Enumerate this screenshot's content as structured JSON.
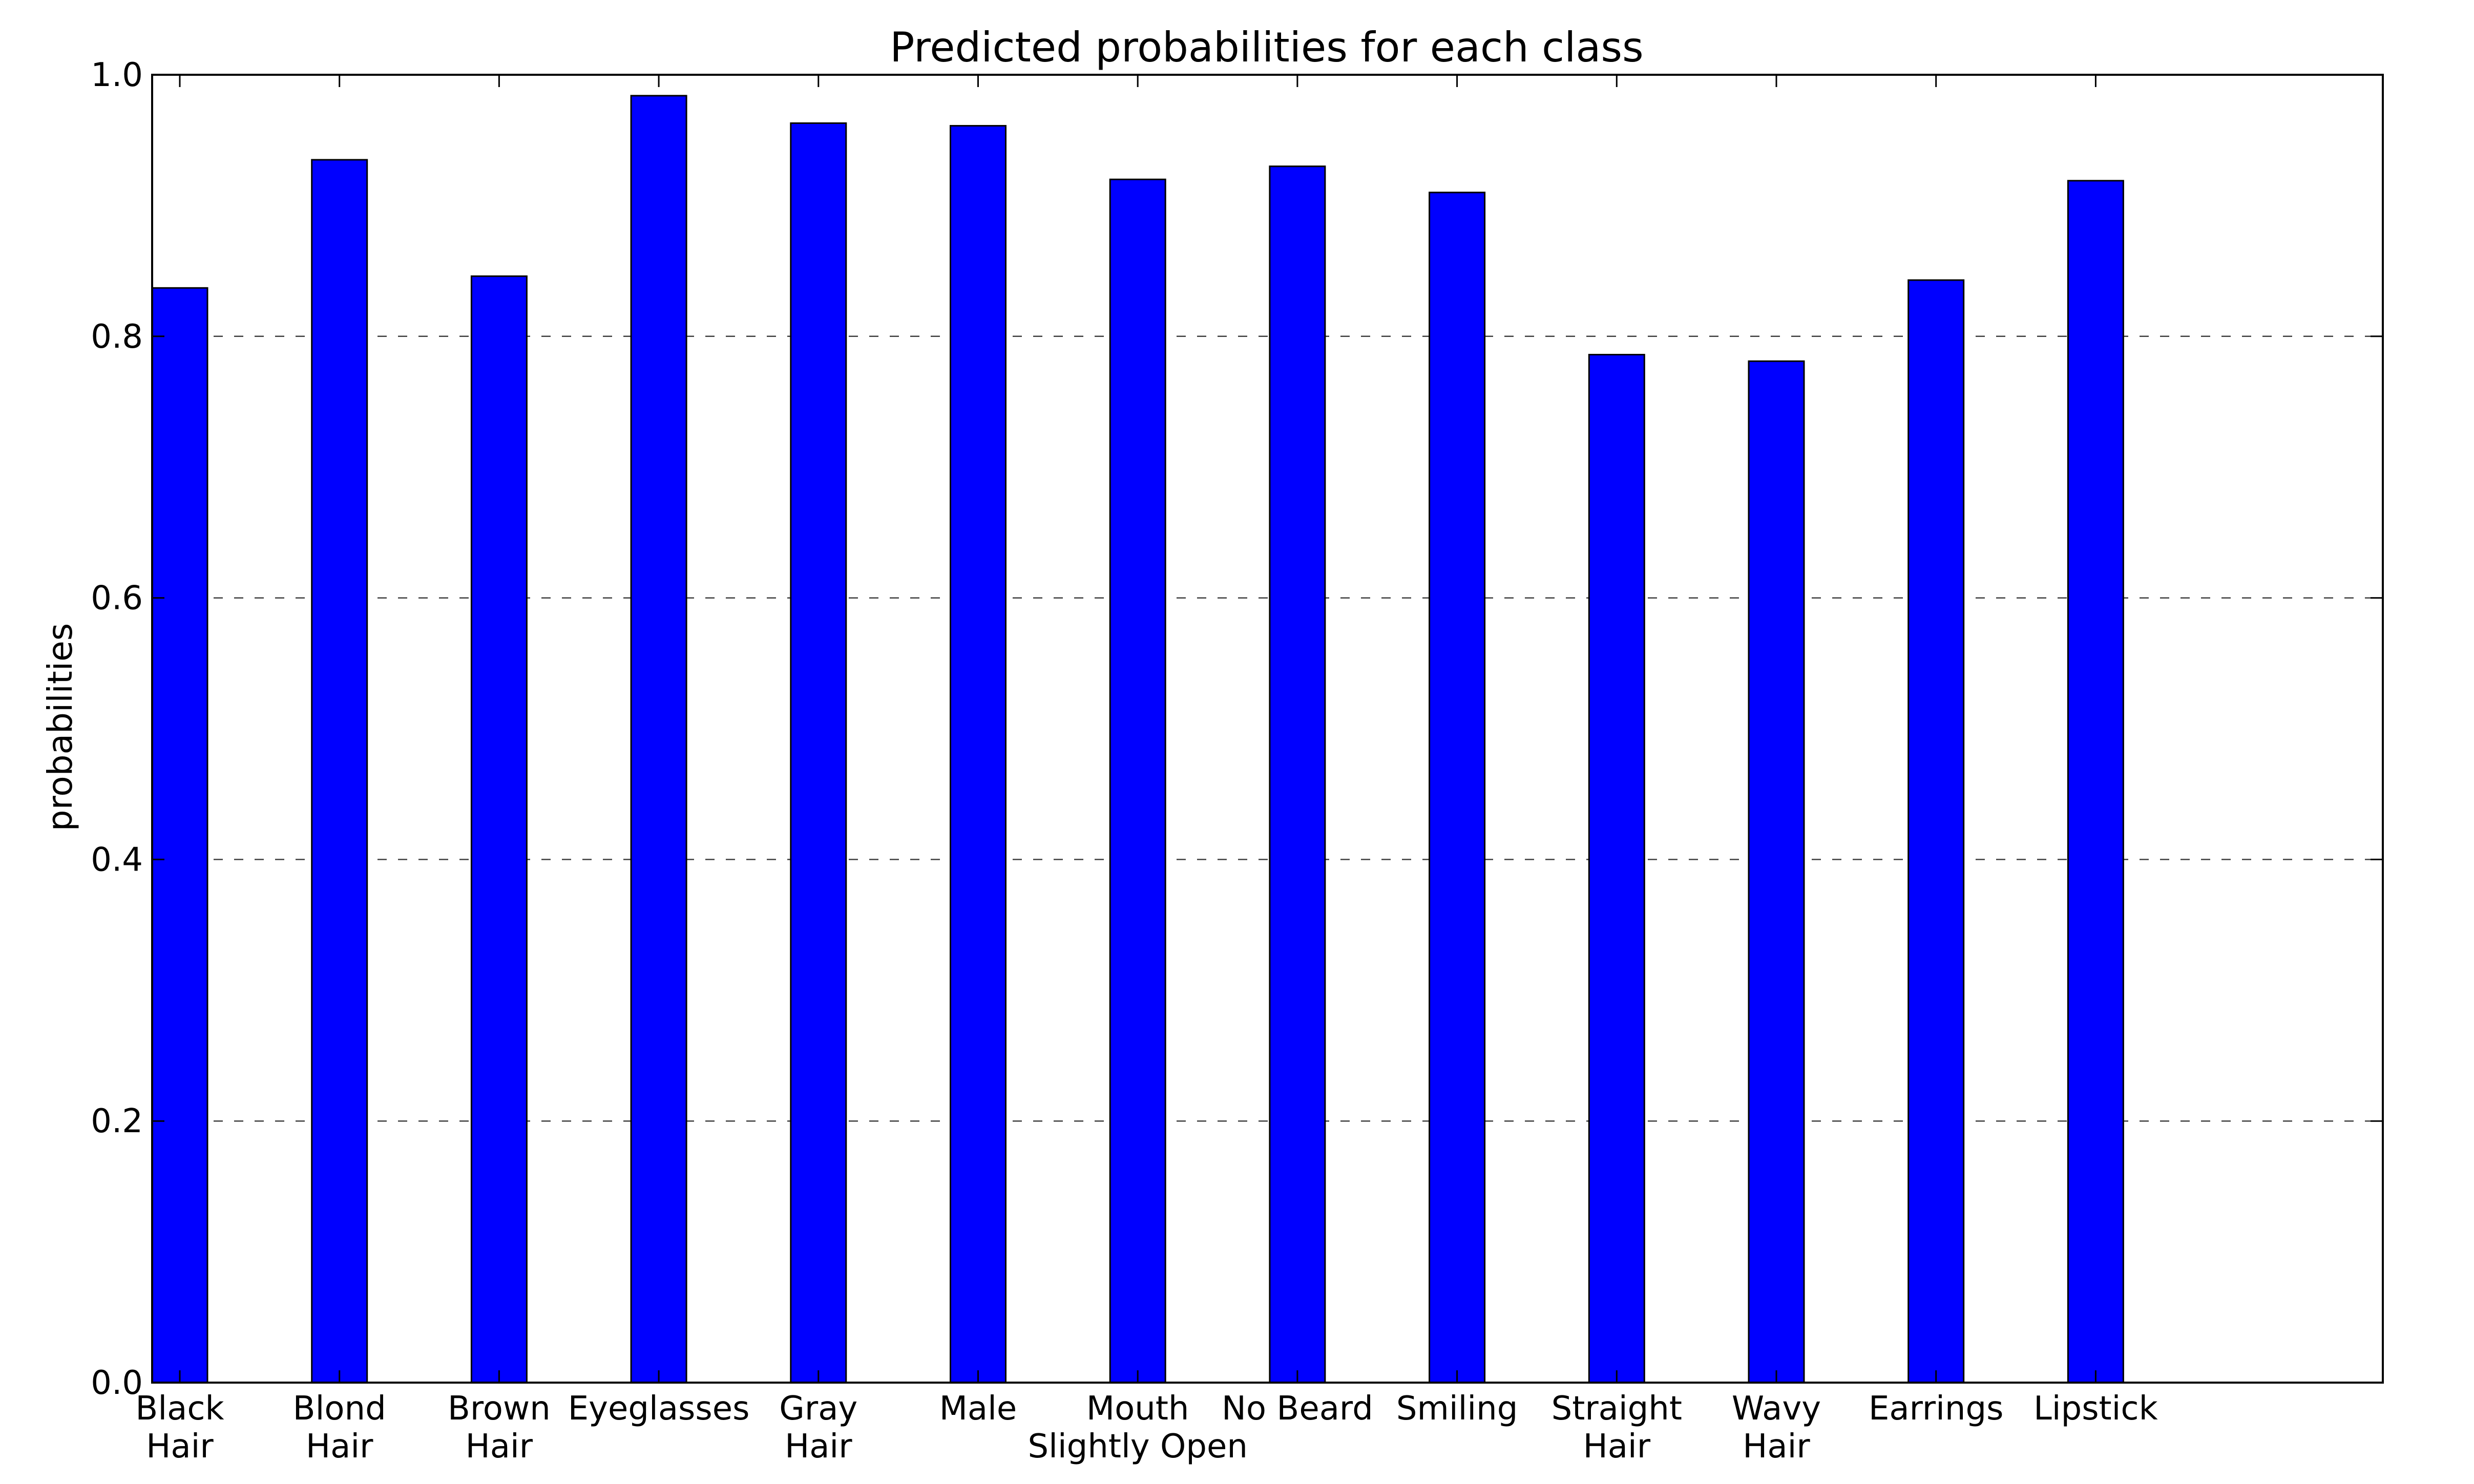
{
  "chart_data": {
    "type": "bar",
    "title": "Predicted probabilities for each class",
    "xlabel": "",
    "ylabel": "probabilities",
    "ylim": [
      0,
      1.0
    ],
    "yticks": [
      "0.0",
      "0.2",
      "0.4",
      "0.6",
      "0.8",
      "1.0"
    ],
    "grid": "y-dashed",
    "categories": [
      [
        "Black",
        "Hair"
      ],
      [
        "Blond",
        "Hair"
      ],
      [
        "Brown",
        "Hair"
      ],
      [
        "Eyeglasses"
      ],
      [
        "Gray",
        "Hair"
      ],
      [
        "Male"
      ],
      [
        "Mouth",
        "Slightly Open"
      ],
      [
        "No Beard"
      ],
      [
        "Smiling"
      ],
      [
        "Straight",
        "Hair"
      ],
      [
        "Wavy",
        "Hair"
      ],
      [
        "Earrings"
      ],
      [
        "Lipstick"
      ]
    ],
    "values": [
      0.837,
      0.935,
      0.846,
      0.984,
      0.963,
      0.961,
      0.92,
      0.93,
      0.91,
      0.786,
      0.781,
      0.843,
      0.919
    ],
    "colors": {
      "bar": "#0000ff",
      "edge": "#000000",
      "grid": "#000000"
    }
  }
}
